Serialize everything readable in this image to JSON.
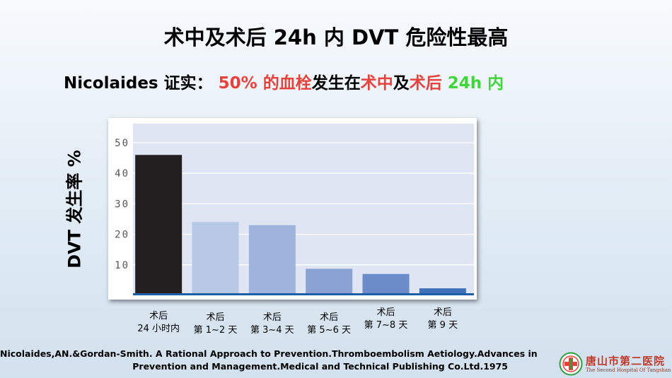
{
  "title": "术中及术后 24h 内 DVT 危险性最高",
  "subtitle": {
    "prefix": "Nicolaides 证实：",
    "part1": "50% 的血栓",
    "part2": "发生在",
    "part3": "术中",
    "part4": "及",
    "part5": "术后",
    "part6": "24h 内"
  },
  "chart_data": {
    "type": "bar",
    "categories": [
      [
        "术后",
        "24 小时内"
      ],
      [
        "术后",
        "第 1~2 天"
      ],
      [
        "术后",
        "第 3~4 天"
      ],
      [
        "术后",
        "第 5~6 天"
      ],
      [
        "术后",
        "第 7~8 天"
      ],
      [
        "术后",
        "第 9 天"
      ]
    ],
    "values": [
      46,
      24,
      23,
      8.7,
      7,
      2.3
    ],
    "bar_colors": [
      "#231f20",
      "#b7c8e7",
      "#9eb4dc",
      "#8aa3d4",
      "#6b8cc8",
      "#3f72ba"
    ],
    "ylabel": "DVT 发生率 %",
    "ylim": [
      0,
      50
    ],
    "yticks": [
      10,
      20,
      30,
      40,
      50
    ],
    "grid": true,
    "plot_bg": "#dfe5f3",
    "baseline_color": "#1f5fa8"
  },
  "citation": {
    "line1": "Nicolaides,AN.&Gordan-Smith. A Rational Approach to Prevention.Thromboembolism Aetiology.Advances in",
    "line2": "Prevention and Management.Medical and Technical Publishing Co.Ltd.1975"
  },
  "logo": {
    "name": "唐山市第二医院",
    "english": "The Second Hospital Of Tangshan",
    "icon": "hospital-cross-emblem-icon"
  }
}
